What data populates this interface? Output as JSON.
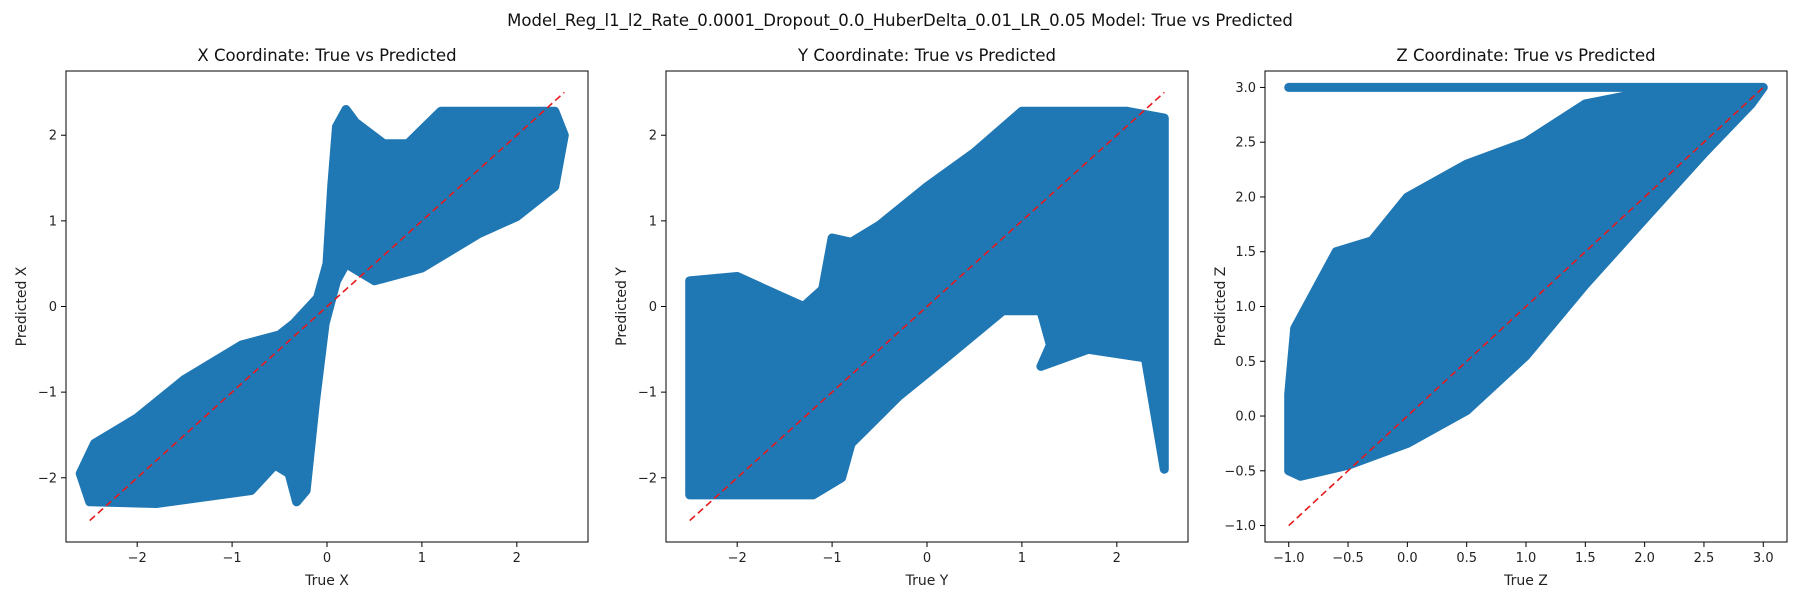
{
  "figure": {
    "suptitle": "Model_Reg_l1_l2_Rate_0.0001_Dropout_0.0_HuberDelta_0.01_LR_0.05 Model: True vs Predicted",
    "point_color": "#1f77b4",
    "ideal_line_color": "#e41a1c"
  },
  "chart_data": [
    {
      "type": "scatter",
      "title": "X Coordinate: True vs Predicted",
      "xlabel": "True X",
      "ylabel": "Predicted X",
      "xlim": [
        -2.75,
        2.75
      ],
      "ylim": [
        -2.75,
        2.75
      ],
      "xticks": [
        -2,
        -1,
        0,
        1,
        2
      ],
      "yticks": [
        -2,
        -1,
        0,
        1,
        2
      ],
      "ideal_line": [
        [
          -2.5,
          -2.5
        ],
        [
          2.5,
          2.5
        ]
      ],
      "point_cloud": [
        [
          -2.5,
          -2.28
        ],
        [
          -1.8,
          -2.3
        ],
        [
          -0.8,
          -2.15
        ],
        [
          -0.55,
          -1.85
        ],
        [
          -0.4,
          -1.95
        ],
        [
          -0.32,
          -2.28
        ],
        [
          -0.22,
          -2.15
        ],
        [
          -0.12,
          -1.1
        ],
        [
          -0.02,
          -0.2
        ],
        [
          0.1,
          0.3
        ],
        [
          0.2,
          0.5
        ],
        [
          0.5,
          0.3
        ],
        [
          1.0,
          0.45
        ],
        [
          1.6,
          0.85
        ],
        [
          2.0,
          1.05
        ],
        [
          2.4,
          1.4
        ],
        [
          2.5,
          2.0
        ],
        [
          2.4,
          2.28
        ],
        [
          1.2,
          2.28
        ],
        [
          0.85,
          1.9
        ],
        [
          0.6,
          1.9
        ],
        [
          0.3,
          2.15
        ],
        [
          0.2,
          2.3
        ],
        [
          0.1,
          2.1
        ],
        [
          0.05,
          1.4
        ],
        [
          0.0,
          0.5
        ],
        [
          -0.1,
          0.1
        ],
        [
          -0.35,
          -0.2
        ],
        [
          -0.5,
          -0.33
        ],
        [
          -0.9,
          -0.45
        ],
        [
          -1.5,
          -0.85
        ],
        [
          -2.0,
          -1.3
        ],
        [
          -2.45,
          -1.6
        ],
        [
          -2.6,
          -1.95
        ]
      ]
    },
    {
      "type": "scatter",
      "title": "Y Coordinate: True vs Predicted",
      "xlabel": "True Y",
      "ylabel": "Predicted Y",
      "xlim": [
        -2.75,
        2.75
      ],
      "ylim": [
        -2.75,
        2.75
      ],
      "xticks": [
        -2,
        -1,
        0,
        1,
        2
      ],
      "yticks": [
        -2,
        -1,
        0,
        1,
        2
      ],
      "ideal_line": [
        [
          -2.5,
          -2.5
        ],
        [
          2.5,
          2.5
        ]
      ],
      "point_cloud": [
        [
          -2.5,
          -2.2
        ],
        [
          -1.2,
          -2.2
        ],
        [
          -0.9,
          -2.0
        ],
        [
          -0.8,
          -1.6
        ],
        [
          -0.3,
          -1.05
        ],
        [
          0.2,
          -0.6
        ],
        [
          0.8,
          -0.05
        ],
        [
          1.2,
          -0.05
        ],
        [
          1.3,
          -0.45
        ],
        [
          1.2,
          -0.7
        ],
        [
          1.7,
          -0.5
        ],
        [
          2.3,
          -0.6
        ],
        [
          2.5,
          -1.9
        ],
        [
          2.5,
          2.2
        ],
        [
          2.1,
          2.28
        ],
        [
          1.0,
          2.28
        ],
        [
          0.5,
          1.8
        ],
        [
          0.0,
          1.4
        ],
        [
          -0.5,
          0.95
        ],
        [
          -0.8,
          0.75
        ],
        [
          -1.0,
          0.8
        ],
        [
          -1.1,
          0.2
        ],
        [
          -1.3,
          0.0
        ],
        [
          -1.6,
          0.15
        ],
        [
          -2.0,
          0.35
        ],
        [
          -2.5,
          0.3
        ]
      ]
    },
    {
      "type": "scatter",
      "title": "Z Coordinate: True vs Predicted",
      "xlabel": "True Z",
      "ylabel": "Predicted Z",
      "xlim": [
        -1.2,
        3.2
      ],
      "ylim": [
        -1.15,
        3.15
      ],
      "xticks": [
        -1.0,
        -0.5,
        0.0,
        0.5,
        1.0,
        1.5,
        2.0,
        2.5,
        3.0
      ],
      "yticks": [
        -1.0,
        -0.5,
        0.0,
        0.5,
        1.0,
        1.5,
        2.0,
        2.5,
        3.0
      ],
      "ideal_line": [
        [
          -1.0,
          -1.0
        ],
        [
          3.0,
          3.0
        ]
      ],
      "point_cloud": [
        [
          -1.0,
          3.0
        ],
        [
          3.0,
          3.0
        ],
        [
          2.9,
          2.85
        ],
        [
          2.5,
          2.4
        ],
        [
          2.0,
          1.8
        ],
        [
          1.5,
          1.2
        ],
        [
          1.0,
          0.55
        ],
        [
          0.5,
          0.05
        ],
        [
          0.0,
          -0.25
        ],
        [
          -0.5,
          -0.45
        ],
        [
          -0.9,
          -0.55
        ],
        [
          -1.0,
          -0.5
        ],
        [
          -1.0,
          0.2
        ],
        [
          -0.95,
          0.8
        ],
        [
          -0.6,
          1.5
        ],
        [
          -0.3,
          1.6
        ],
        [
          0.0,
          2.0
        ],
        [
          0.5,
          2.3
        ],
        [
          1.0,
          2.5
        ],
        [
          1.5,
          2.85
        ],
        [
          2.2,
          3.0
        ]
      ]
    }
  ]
}
